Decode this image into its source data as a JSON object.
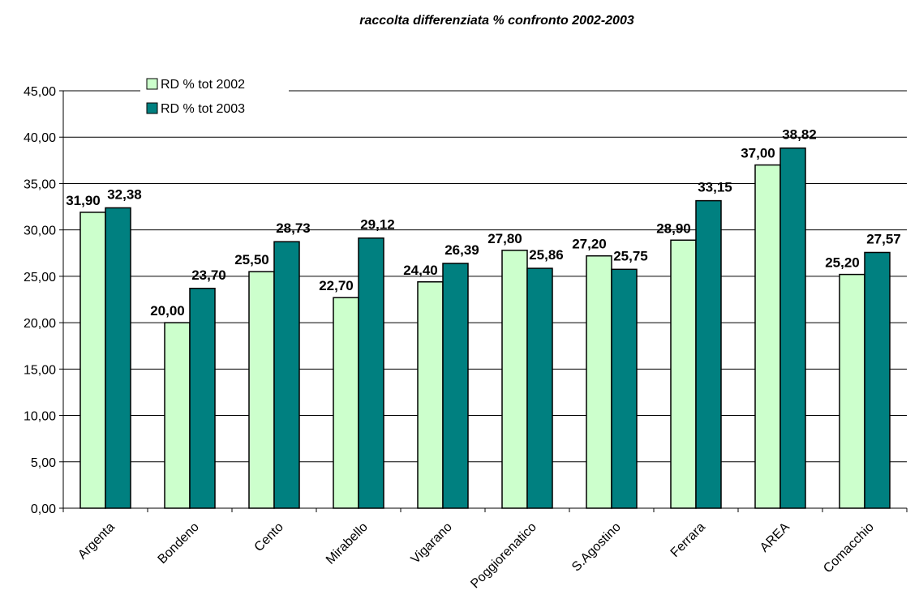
{
  "chart_data": {
    "type": "bar",
    "title": "raccolta differenziata % confronto 2002-2003",
    "xlabel": "",
    "ylabel": "",
    "ylim": [
      0,
      45
    ],
    "ytick_step": 5,
    "yticks": [
      "0,00",
      "5,00",
      "10,00",
      "15,00",
      "20,00",
      "25,00",
      "30,00",
      "35,00",
      "40,00",
      "45,00"
    ],
    "grid": "horizontal",
    "legend_position": "top-left",
    "categories": [
      "Argenta",
      "Bondeno",
      "Cento",
      "Mirabello",
      "Vigarano",
      "Poggiorenatico",
      "S.Agostino",
      "Ferrara",
      "AREA",
      "Comacchio"
    ],
    "series": [
      {
        "name": "RD % tot 2002",
        "color": "#ccffcc",
        "values": [
          31.9,
          20.0,
          25.5,
          22.7,
          24.4,
          27.8,
          27.2,
          28.9,
          37.0,
          25.2
        ],
        "labels": [
          "31,90",
          "20,00",
          "25,50",
          "22,70",
          "24,40",
          "27,80",
          "27,20",
          "28,90",
          "37,00",
          "25,20"
        ]
      },
      {
        "name": "RD % tot 2003",
        "color": "#008080",
        "values": [
          32.38,
          23.7,
          28.73,
          29.12,
          26.39,
          25.86,
          25.75,
          33.15,
          38.82,
          27.57
        ],
        "labels": [
          "32,38",
          "23,70",
          "28,73",
          "29,12",
          "26,39",
          "25,86",
          "25,75",
          "33,15",
          "38,82",
          "27,57"
        ]
      }
    ]
  }
}
